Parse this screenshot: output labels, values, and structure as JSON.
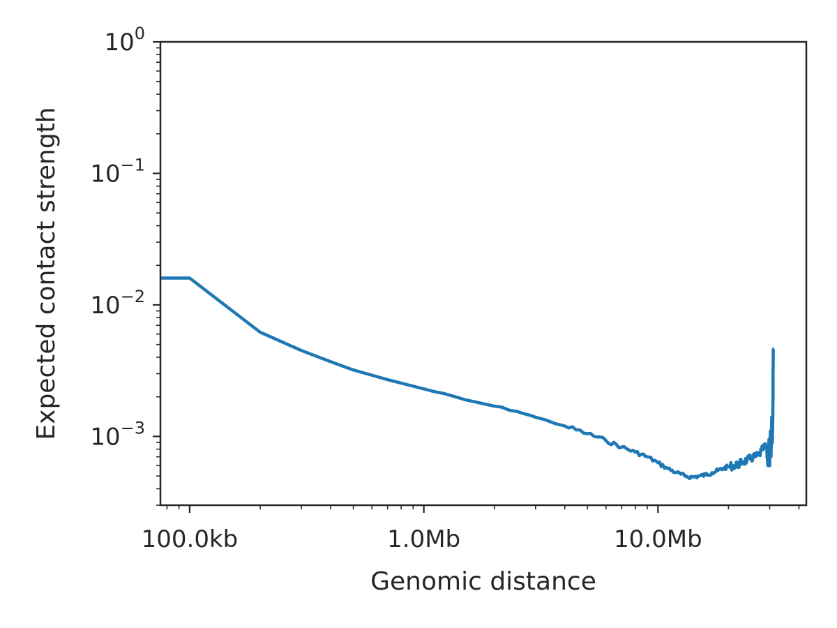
{
  "colors": {
    "series": "#1f77b4",
    "axis": "#262626",
    "background": "#ffffff"
  },
  "chart_data": {
    "type": "line",
    "title": "",
    "xlabel": "Genomic distance",
    "ylabel": "Expected contact strength",
    "xscale": "log",
    "yscale": "log",
    "xlim": [
      75000,
      43000000
    ],
    "ylim": [
      0.0003,
      1
    ],
    "grid": false,
    "legend": "none",
    "x_ticks": [
      {
        "value": 100000,
        "label": "100.0kb"
      },
      {
        "value": 1000000,
        "label": "1.0Mb"
      },
      {
        "value": 10000000,
        "label": "10.0Mb"
      }
    ],
    "y_ticks": [
      {
        "value": 1,
        "base": "10",
        "exp": "0"
      },
      {
        "value": 0.1,
        "base": "10",
        "exp": "−1"
      },
      {
        "value": 0.01,
        "base": "10",
        "exp": "−2"
      },
      {
        "value": 0.001,
        "base": "10",
        "exp": "−3"
      }
    ],
    "series": [
      {
        "color": "#1f77b4",
        "x": [
          75000,
          100000,
          200000,
          300000,
          400000,
          500000,
          700000,
          1000000,
          1100000,
          1500000,
          2000000,
          2500000,
          3000000,
          4000000,
          5000000,
          6000000,
          7000000,
          8000000,
          9000000,
          10000000,
          11000000,
          12000000,
          13000000,
          14000000,
          15000000,
          16000000,
          17000000,
          18000000,
          19000000,
          20000000,
          21000000,
          22000000,
          23000000,
          24000000,
          25000000,
          26000000,
          27000000,
          28000000,
          29000000,
          29500000,
          29800000,
          30000000,
          30200000,
          30400000,
          30600000,
          30800000,
          31000000,
          31000000,
          31100000
        ],
        "y": [
          0.016,
          0.016,
          0.0062,
          0.0045,
          0.0037,
          0.0032,
          0.0027,
          0.0023,
          0.0022,
          0.0019,
          0.0017,
          0.00155,
          0.0014,
          0.0012,
          0.00105,
          0.00093,
          0.00083,
          0.00076,
          0.0007,
          0.00063,
          0.00057,
          0.00053,
          0.0005,
          0.00049,
          0.0005,
          0.00051,
          0.00053,
          0.00055,
          0.00057,
          0.00059,
          0.0006,
          0.00061,
          0.00064,
          0.00066,
          0.00068,
          0.0007,
          0.00072,
          0.0008,
          0.00085,
          0.0006,
          0.00095,
          0.0006,
          0.0011,
          0.0007,
          0.0014,
          0.0009,
          0.002,
          0.0032,
          0.0046
        ]
      }
    ]
  }
}
